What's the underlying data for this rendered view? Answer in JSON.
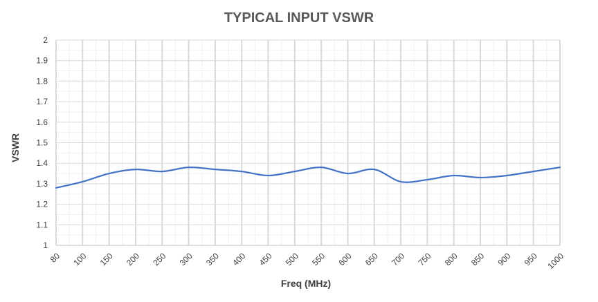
{
  "chart_data": {
    "type": "line",
    "title": "TYPICAL INPUT VSWR",
    "xlabel": "Freq (MHz)",
    "ylabel": "VSWR",
    "categories": [
      "80",
      "100",
      "150",
      "200",
      "250",
      "300",
      "350",
      "400",
      "450",
      "500",
      "550",
      "600",
      "650",
      "700",
      "750",
      "800",
      "850",
      "900",
      "950",
      "1000"
    ],
    "y_ticks": [
      "1",
      "1.1",
      "1.2",
      "1.3",
      "1.4",
      "1.5",
      "1.6",
      "1.7",
      "1.8",
      "1.9",
      "2"
    ],
    "ylim": [
      1,
      2
    ],
    "grid": true,
    "series": [
      {
        "values": [
          1.28,
          1.31,
          1.35,
          1.37,
          1.36,
          1.38,
          1.37,
          1.36,
          1.34,
          1.36,
          1.38,
          1.35,
          1.37,
          1.31,
          1.32,
          1.34,
          1.33,
          1.34,
          1.36,
          1.38
        ]
      }
    ],
    "colors": {
      "line": "#4472C4",
      "major_grid": "#D9D9D9",
      "minor_grid": "#F0F0F0",
      "axis": "#BFBFBF"
    }
  }
}
